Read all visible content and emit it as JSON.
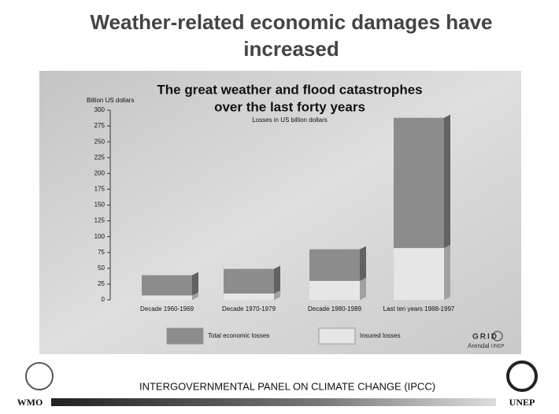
{
  "header": {
    "title_line1": "Weather-related economic damages have",
    "title_line2": "increased"
  },
  "chart_data": {
    "type": "bar",
    "mode": "overlay",
    "title_line1": "The great weather and flood catastrophes",
    "title_line2": "over the last forty years",
    "subtitle": "Losses in US billion dollars",
    "y_label": "Billion US dollars",
    "categories": [
      "Decade 1960-1969",
      "Decade 1970-1979",
      "Decade 1980-1989",
      "Last ten years 1988-1997"
    ],
    "series": [
      {
        "name": "Total economic losses",
        "color": "#8c8c8c",
        "values": [
          39,
          49,
          80,
          288
        ]
      },
      {
        "name": "Insured losses",
        "color": "#e6e6e6",
        "values": [
          7,
          10,
          30,
          82
        ]
      }
    ],
    "ylim": [
      0,
      300
    ],
    "yticks": [
      0,
      25,
      50,
      75,
      100,
      125,
      150,
      175,
      200,
      225,
      250,
      275,
      300
    ],
    "grid": false
  },
  "logos": {
    "grid": "GRID",
    "arendal": "Arendal",
    "unep_small": "UNEP"
  },
  "footer": {
    "text": "INTERGOVERNMENTAL PANEL ON CLIMATE CHANGE (IPCC)",
    "left": "WMO",
    "right": "UNEP"
  }
}
